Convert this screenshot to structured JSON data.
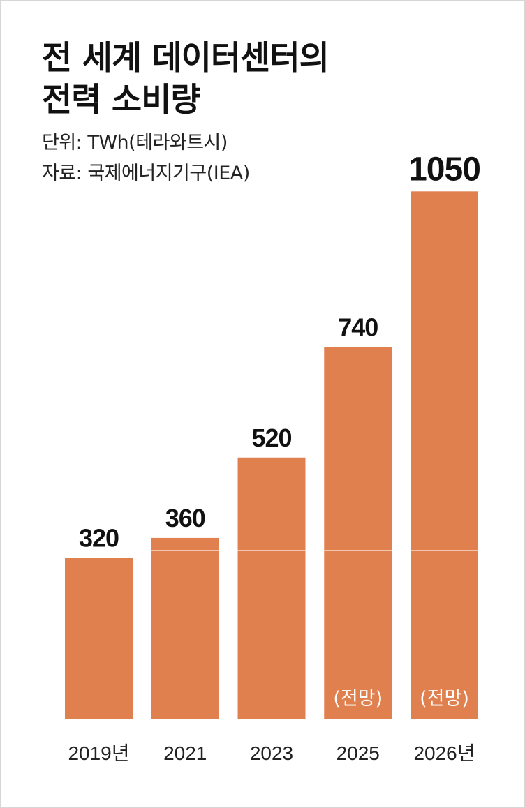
{
  "header": {
    "title_line1": "전 세계 데이터센터의",
    "title_line2": "전력 소비량",
    "unit": "단위: TWh(테라와트시)",
    "source": "자료: 국제에너지기구(IEA)"
  },
  "colors": {
    "bar": "#e0804f",
    "divider": "#ffffff"
  },
  "chart_data": {
    "type": "bar",
    "title": "전 세계 데이터센터의 전력 소비량",
    "unit": "TWh",
    "categories": [
      "2019년",
      "2021",
      "2023",
      "2025",
      "2026년"
    ],
    "values": [
      320,
      360,
      520,
      740,
      1050
    ],
    "value_labels": [
      "320",
      "360",
      "520",
      "740",
      "1050"
    ],
    "notes": [
      "",
      "",
      "",
      "(전망)",
      "(전망)"
    ],
    "highlight_index": 4,
    "grid": false,
    "legend": "none"
  }
}
